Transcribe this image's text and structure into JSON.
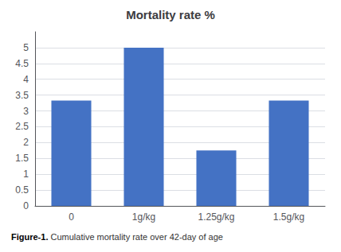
{
  "chart_data": {
    "type": "bar",
    "title": "Mortality rate %",
    "categories": [
      "0",
      "1g/kg",
      "1.25g/kg",
      "1.5g/kg"
    ],
    "values": [
      3.33,
      5.0,
      1.75,
      3.33
    ],
    "color": "#4472C4",
    "ylim": [
      0,
      5.5
    ],
    "yticks": [
      0,
      0.5,
      1,
      1.5,
      2,
      2.5,
      3,
      3.5,
      4,
      4.5,
      5
    ],
    "grid": true,
    "annotations": [
      "Figure-1.",
      "Cumulative mortality rate over 42-day of age"
    ]
  }
}
